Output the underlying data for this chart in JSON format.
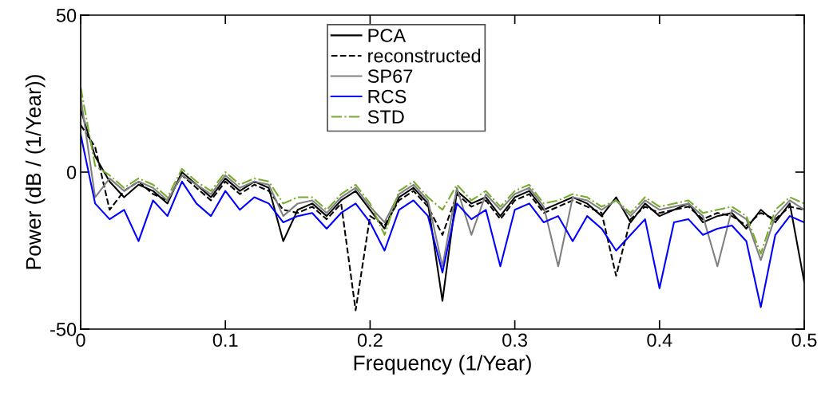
{
  "chart_data": {
    "type": "line",
    "xlabel": "Frequency (1/Year)",
    "ylabel": "Power (dB / (1/Year))",
    "x": [
      0,
      0.01,
      0.02,
      0.03,
      0.04,
      0.05,
      0.06,
      0.07,
      0.08,
      0.09,
      0.1,
      0.11,
      0.12,
      0.13,
      0.14,
      0.15,
      0.16,
      0.17,
      0.18,
      0.19,
      0.2,
      0.21,
      0.22,
      0.23,
      0.24,
      0.25,
      0.26,
      0.27,
      0.28,
      0.29,
      0.3,
      0.31,
      0.32,
      0.33,
      0.34,
      0.35,
      0.36,
      0.37,
      0.38,
      0.39,
      0.4,
      0.41,
      0.42,
      0.43,
      0.44,
      0.45,
      0.46,
      0.47,
      0.48,
      0.49,
      0.5
    ],
    "xlim": [
      0,
      0.5
    ],
    "ylim": [
      -50,
      50
    ],
    "xticks": [
      0,
      0.1,
      0.2,
      0.3,
      0.4,
      0.5
    ],
    "yticks": [
      -50,
      0,
      50
    ],
    "legend": "top",
    "grid": false,
    "series": [
      {
        "name": "PCA",
        "color": "#000000",
        "line_style": "solid",
        "values": [
          20,
          5,
          -3,
          -8,
          -4,
          -6,
          -10,
          0,
          -4,
          -8,
          -2,
          -6,
          -3,
          -5,
          -22,
          -12,
          -10,
          -14,
          -9,
          -6,
          -12,
          -18,
          -8,
          -5,
          -10,
          -41,
          -6,
          -10,
          -8,
          -14,
          -8,
          -6,
          -12,
          -10,
          -8,
          -10,
          -14,
          -8,
          -16,
          -10,
          -14,
          -12,
          -10,
          -16,
          -14,
          -13,
          -18,
          -12,
          -16,
          -10,
          -35
        ]
      },
      {
        "name": "reconstructed",
        "color": "#000000",
        "line_style": "dashed",
        "values": [
          15,
          8,
          -12,
          -6,
          -3,
          -7,
          -9,
          -1,
          -5,
          -9,
          -3,
          -7,
          -4,
          -6,
          -12,
          -13,
          -11,
          -15,
          -10,
          -44,
          -14,
          -17,
          -9,
          -6,
          -11,
          -20,
          -7,
          -11,
          -9,
          -15,
          -9,
          -7,
          -13,
          -11,
          -9,
          -11,
          -13,
          -33,
          -15,
          -11,
          -13,
          -12,
          -11,
          -15,
          -13,
          -14,
          -17,
          -13,
          -15,
          -11,
          -12
        ]
      },
      {
        "name": "SP67",
        "color": "#808080",
        "line_style": "solid",
        "values": [
          24,
          -8,
          -2,
          -6,
          -3,
          -5,
          -9,
          -1,
          -4,
          -7,
          -1,
          -5,
          -3,
          -4,
          -14,
          -10,
          -9,
          -13,
          -8,
          -5,
          -11,
          -16,
          -7,
          -4,
          -9,
          -30,
          -5,
          -20,
          -7,
          -12,
          -7,
          -5,
          -11,
          -30,
          -8,
          -9,
          -12,
          -9,
          -14,
          -9,
          -12,
          -11,
          -10,
          -14,
          -30,
          -12,
          -15,
          -28,
          -14,
          -9,
          -12
        ]
      },
      {
        "name": "RCS",
        "color": "#0000ff",
        "line_style": "solid",
        "values": [
          12,
          -10,
          -15,
          -12,
          -22,
          -9,
          -14,
          -3,
          -10,
          -14,
          -6,
          -12,
          -8,
          -10,
          -16,
          -14,
          -13,
          -18,
          -13,
          -10,
          -16,
          -25,
          -12,
          -9,
          -14,
          -32,
          -10,
          -15,
          -12,
          -30,
          -12,
          -10,
          -16,
          -14,
          -22,
          -14,
          -18,
          -25,
          -20,
          -15,
          -37,
          -16,
          -15,
          -20,
          -18,
          -17,
          -22,
          -43,
          -20,
          -14,
          -16
        ]
      },
      {
        "name": "STD",
        "color": "#77ac30",
        "line_style": "dashdot",
        "values": [
          27,
          2,
          -1,
          -5,
          -2,
          -4,
          -8,
          1,
          -3,
          -6,
          0,
          -4,
          -2,
          -3,
          -10,
          -8,
          -8,
          -12,
          -7,
          -4,
          -10,
          -20,
          -6,
          -3,
          -8,
          -12,
          -4,
          -9,
          -6,
          -11,
          -6,
          -4,
          -10,
          -9,
          -7,
          -8,
          -11,
          -9,
          -13,
          -8,
          -11,
          -10,
          -9,
          -13,
          -12,
          -11,
          -14,
          -26,
          -12,
          -8,
          -10
        ]
      }
    ]
  }
}
